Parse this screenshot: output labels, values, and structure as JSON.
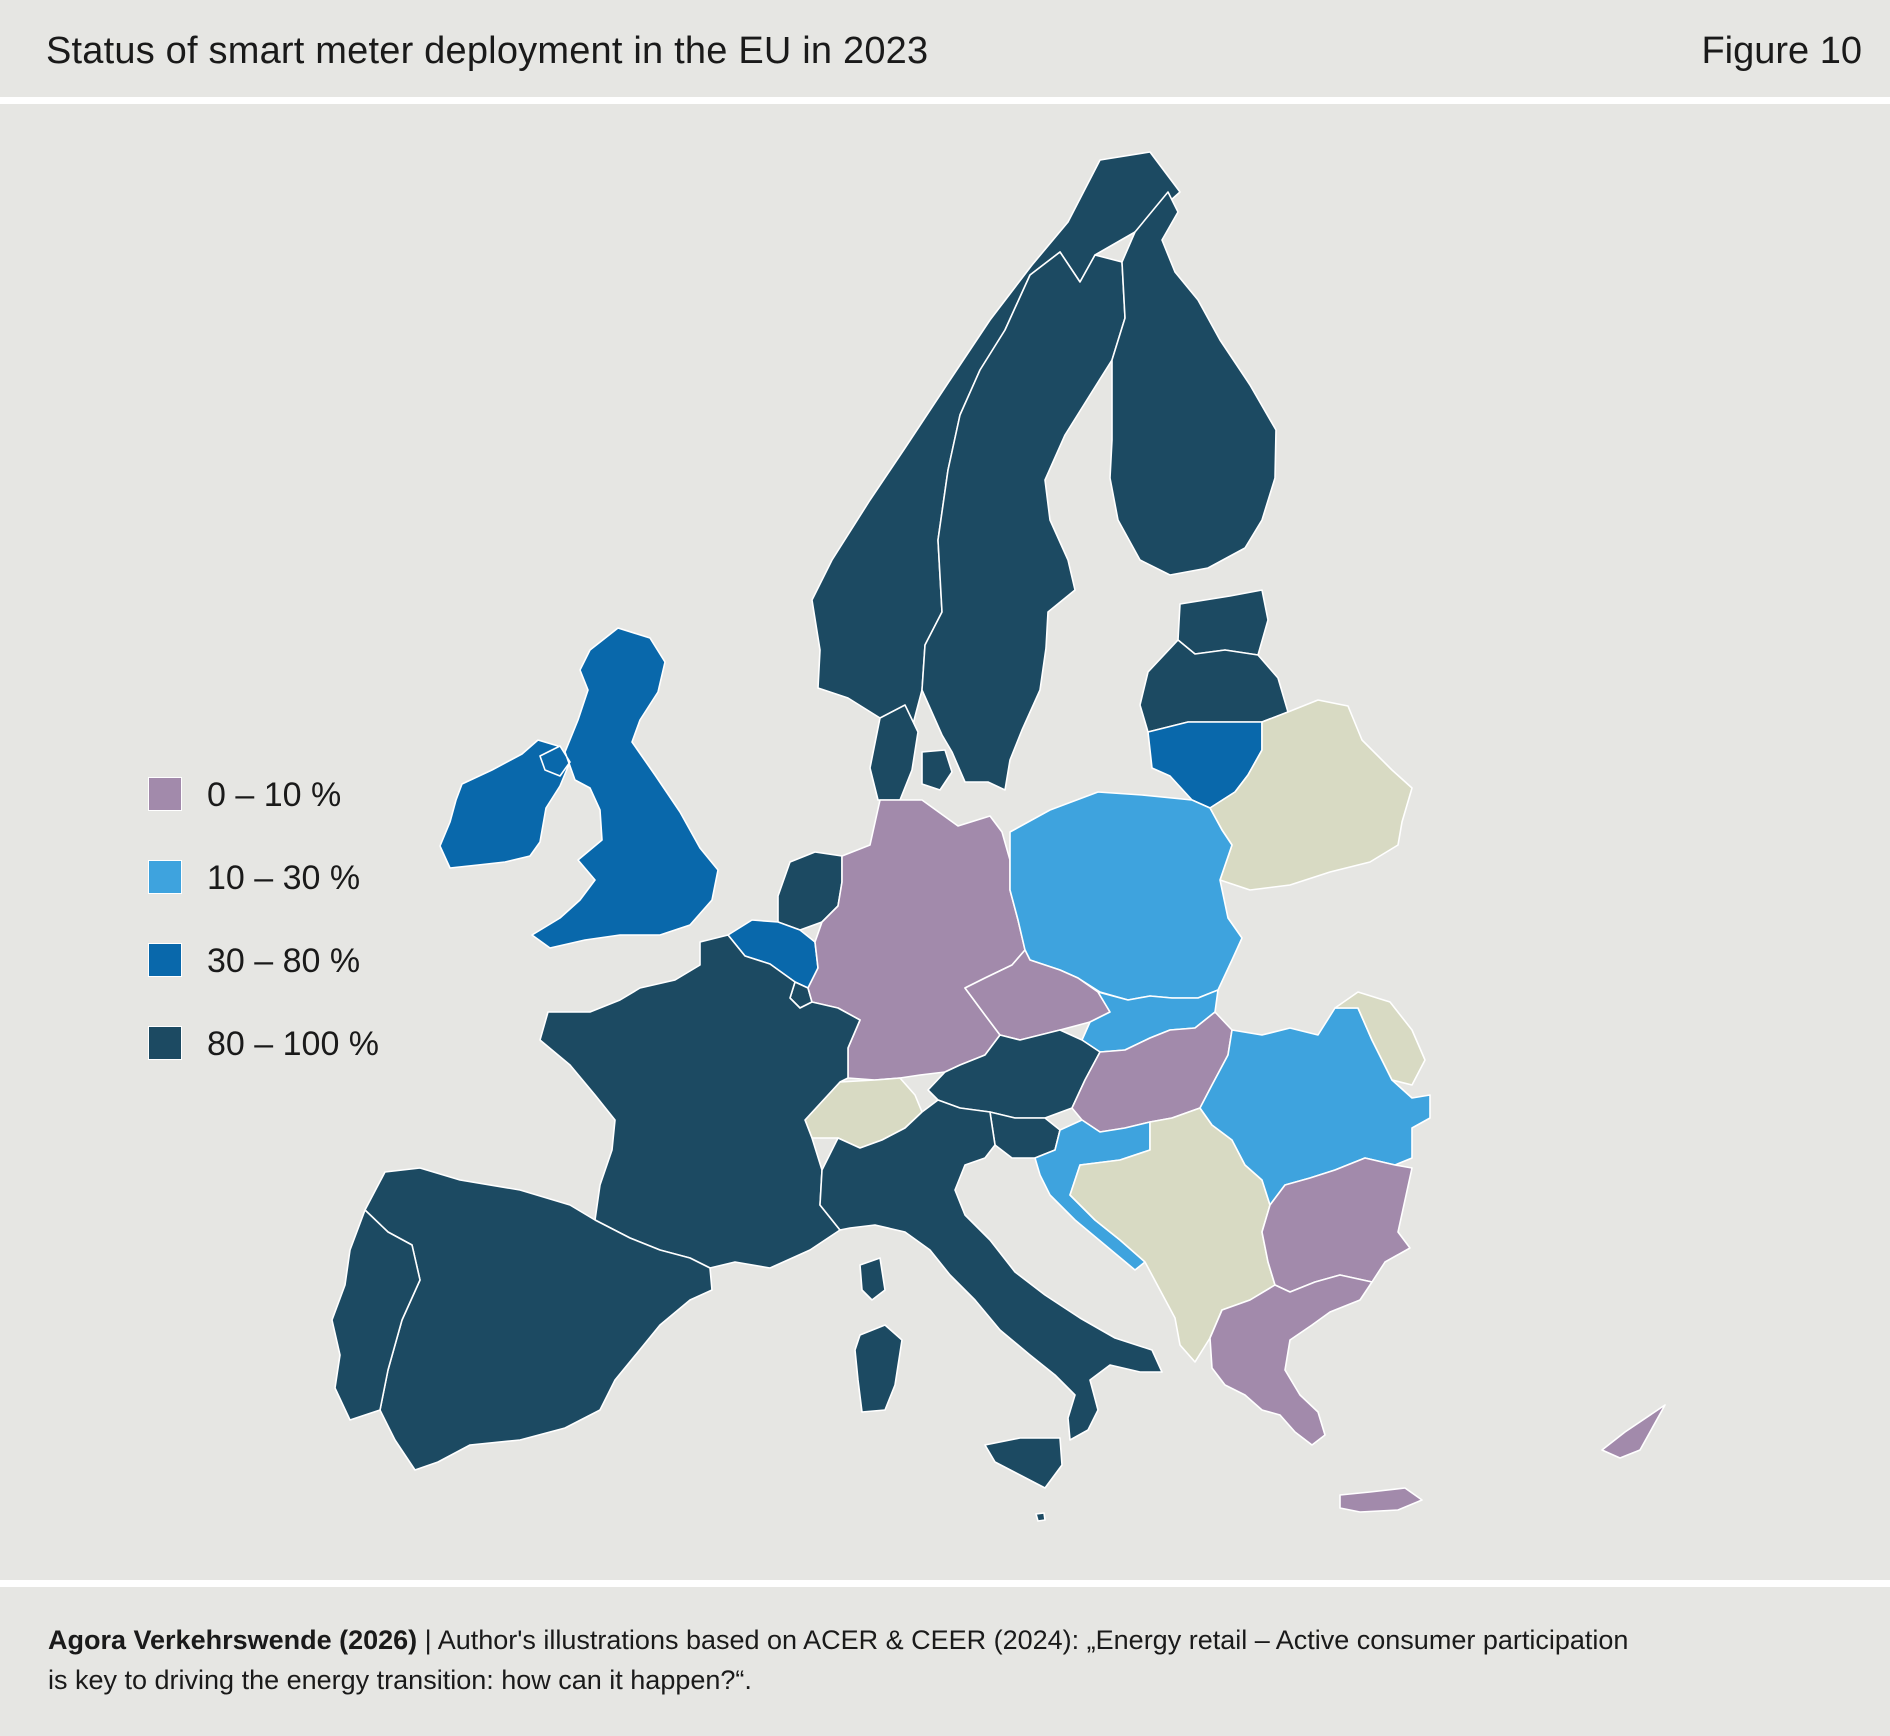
{
  "header": {
    "title": "Status of smart meter deployment in the EU in 2023",
    "figure_label": "Figure 10"
  },
  "legend": {
    "items": [
      {
        "label": "0 – 10 %",
        "color": "#a28aab"
      },
      {
        "label": "10 – 30 %",
        "color": "#3ea3de"
      },
      {
        "label": "30 – 80 %",
        "color": "#0968ab"
      },
      {
        "label": "80 – 100 %",
        "color": "#1c4a62"
      }
    ]
  },
  "colors": {
    "background": "#e6e6e3",
    "non_eu": "#d8dac3",
    "border": "#ffffff"
  },
  "map": {
    "regions": [
      {
        "name": "Norway",
        "category": "80 – 100 %"
      },
      {
        "name": "Sweden",
        "category": "80 – 100 %"
      },
      {
        "name": "Finland",
        "category": "80 – 100 %"
      },
      {
        "name": "Estonia",
        "category": "80 – 100 %"
      },
      {
        "name": "Latvia",
        "category": "80 – 100 %"
      },
      {
        "name": "Lithuania",
        "category": "30 – 80 %"
      },
      {
        "name": "Denmark",
        "category": "80 – 100 %"
      },
      {
        "name": "Ireland",
        "category": "30 – 80 %"
      },
      {
        "name": "United Kingdom",
        "category": "30 – 80 %"
      },
      {
        "name": "Netherlands",
        "category": "80 – 100 %"
      },
      {
        "name": "Belgium",
        "category": "30 – 80 %"
      },
      {
        "name": "Luxembourg",
        "category": "80 – 100 %"
      },
      {
        "name": "France",
        "category": "80 – 100 %"
      },
      {
        "name": "Spain",
        "category": "80 – 100 %"
      },
      {
        "name": "Portugal",
        "category": "80 – 100 %"
      },
      {
        "name": "Germany",
        "category": "0 – 10 %"
      },
      {
        "name": "Poland",
        "category": "10 – 30 %"
      },
      {
        "name": "Czechia",
        "category": "0 – 10 %"
      },
      {
        "name": "Slovakia",
        "category": "10 – 30 %"
      },
      {
        "name": "Austria",
        "category": "80 – 100 %"
      },
      {
        "name": "Switzerland",
        "category": "non-EU"
      },
      {
        "name": "Italy",
        "category": "80 – 100 %"
      },
      {
        "name": "Slovenia",
        "category": "80 – 100 %"
      },
      {
        "name": "Croatia",
        "category": "10 – 30 %"
      },
      {
        "name": "Hungary",
        "category": "0 – 10 %"
      },
      {
        "name": "Romania",
        "category": "10 – 30 %"
      },
      {
        "name": "Bulgaria",
        "category": "0 – 10 %"
      },
      {
        "name": "Greece",
        "category": "0 – 10 %"
      },
      {
        "name": "Cyprus",
        "category": "0 – 10 %"
      },
      {
        "name": "Malta",
        "category": "80 – 100 %"
      },
      {
        "name": "Belarus",
        "category": "non-EU"
      },
      {
        "name": "Moldova",
        "category": "non-EU"
      },
      {
        "name": "Western Balkans",
        "category": "non-EU"
      }
    ]
  },
  "footer": {
    "source_strong": "Agora Verkehrswende (2026)",
    "source_text": " | Author's illustrations based on ACER & CEER (2024): „Energy retail – Active consumer participation",
    "source_text_line2": "is key to driving the energy transition: how can it happen?“."
  }
}
